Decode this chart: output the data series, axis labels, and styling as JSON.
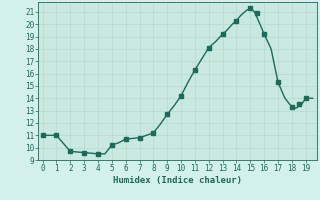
{
  "xlabel": "Humidex (Indice chaleur)",
  "x_values": [
    0,
    0.5,
    1,
    2,
    3,
    4,
    4.5,
    5,
    5.5,
    6,
    6.5,
    7,
    7.5,
    8,
    8.5,
    9,
    9.5,
    10,
    10.5,
    11,
    11.5,
    12,
    12.5,
    13,
    13.3,
    13.7,
    14,
    14.3,
    14.7,
    15,
    15.3,
    15.7,
    16,
    16.5,
    17,
    17.5,
    18,
    18.3,
    18.7,
    19,
    19.5
  ],
  "y_values": [
    11,
    11,
    11,
    9.7,
    9.6,
    9.5,
    9.5,
    10.2,
    10.4,
    10.7,
    10.75,
    10.8,
    11.0,
    11.2,
    11.9,
    12.7,
    13.4,
    14.2,
    15.3,
    16.3,
    17.2,
    18.1,
    18.6,
    19.2,
    19.5,
    20.0,
    20.3,
    20.7,
    21.1,
    21.3,
    21.0,
    20.0,
    19.2,
    18.0,
    15.3,
    14.0,
    13.3,
    13.2,
    13.5,
    14.0,
    14.0
  ],
  "marker_x": [
    0,
    1,
    2,
    3,
    4,
    5,
    6,
    7,
    8,
    9,
    10,
    11,
    12,
    13,
    14,
    15,
    15.5,
    16,
    17,
    18,
    18.5,
    19
  ],
  "marker_y": [
    11,
    11,
    9.7,
    9.6,
    9.5,
    10.2,
    10.7,
    10.8,
    11.2,
    12.7,
    14.2,
    16.3,
    18.1,
    19.2,
    20.3,
    21.3,
    20.9,
    19.2,
    15.3,
    13.3,
    13.5,
    14.0
  ],
  "line_color": "#1a6b5a",
  "marker_color": "#1a6b5a",
  "bg_color": "#d4f0ec",
  "grid_bg_color": "#c8e8e0",
  "grid_color": "#b8d8d0",
  "xlim": [
    -0.3,
    19.8
  ],
  "ylim": [
    9,
    21.8
  ],
  "xticks": [
    0,
    1,
    2,
    3,
    4,
    5,
    6,
    7,
    8,
    9,
    10,
    11,
    12,
    13,
    14,
    15,
    16,
    17,
    18,
    19
  ],
  "yticks": [
    9,
    10,
    11,
    12,
    13,
    14,
    15,
    16,
    17,
    18,
    19,
    20,
    21
  ],
  "xlabel_fontsize": 6.5,
  "tick_fontsize": 5.5,
  "line_width": 1.0,
  "marker_size": 2.2
}
